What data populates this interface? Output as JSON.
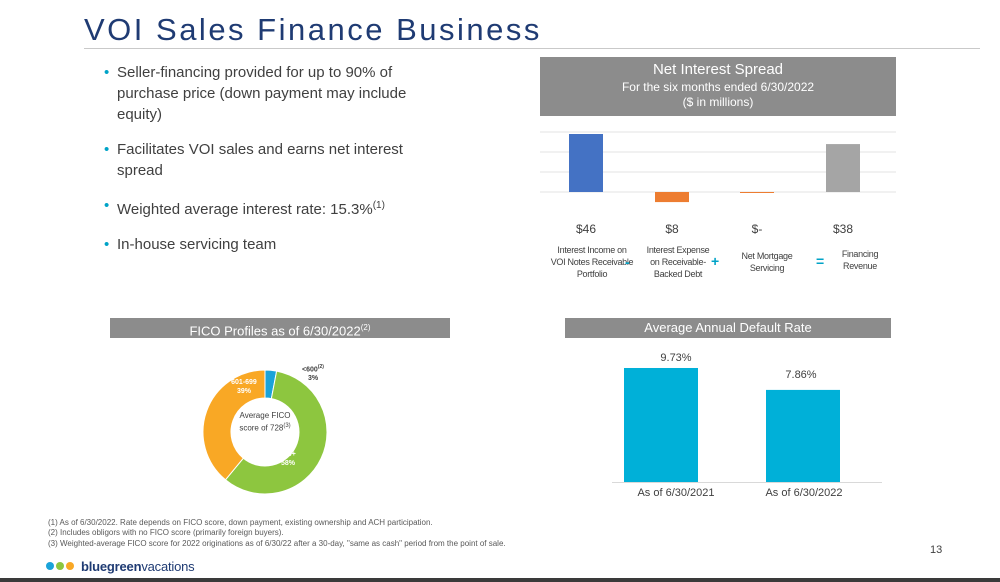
{
  "slide": {
    "title": "VOI Sales Finance Business",
    "page_number": "13"
  },
  "bullets": [
    "Seller-financing provided for up to 90% of purchase price (down payment may include equity)",
    "Facilitates VOI sales and earns net interest spread",
    "Weighted average interest rate: 15.3%",
    "In-house servicing team"
  ],
  "bullet_superscripts": {
    "rate": "(1)"
  },
  "net_interest_spread": {
    "title": "Net Interest Spread",
    "subtitle": "For the six  months ended 6/30/2022",
    "units": "($ in millions)",
    "operators": [
      "-",
      "+",
      "="
    ],
    "labels": [
      "Interest Income on VOI Notes Receivable Portfolio",
      "Interest Expense on Receivable-Backed Debt",
      "Net Mortgage Servicing",
      "Financing Revenue"
    ],
    "value_labels": [
      "$46",
      "$8",
      "$-",
      "$38"
    ]
  },
  "fico": {
    "title": "FICO Profiles as of 6/30/2022",
    "title_sup": "(2)",
    "center_label": "Average FICO score of 728",
    "center_sup": "(3)",
    "segments": [
      {
        "label": "<600",
        "sup": "(2)",
        "pct": "3%",
        "color": "#1aa3d9"
      },
      {
        "label": "700+",
        "pct": "58%",
        "color": "#8dc63f"
      },
      {
        "label": "601-699",
        "pct": "39%",
        "color": "#f9a825"
      }
    ]
  },
  "default_rate": {
    "title": "Average Annual Default Rate",
    "bar_color": "#00b0d8"
  },
  "chart_data": [
    {
      "type": "bar",
      "title": "Net Interest Spread",
      "subtitle": "For the six  months ended 6/30/2022",
      "ylabel": "($ in millions)",
      "categories": [
        "Interest Income on VOI Notes Receivable Portfolio",
        "Interest Expense on Receivable-Backed Debt",
        "Net Mortgage Servicing",
        "Financing Revenue"
      ],
      "values": [
        46,
        -8,
        0,
        38
      ],
      "colors": [
        "#4472c4",
        "#ed7d31",
        "#ed7d31",
        "#a5a5a5"
      ],
      "grid": true
    },
    {
      "type": "pie",
      "title": "FICO Profiles as of 6/30/2022",
      "categories": [
        "<600",
        "700+",
        "601-699"
      ],
      "values": [
        3,
        58,
        39
      ],
      "colors": [
        "#1aa3d9",
        "#8dc63f",
        "#f9a825"
      ]
    },
    {
      "type": "bar",
      "title": "Average Annual Default Rate",
      "categories": [
        "As of 6/30/2021",
        "As of 6/30/2022"
      ],
      "values": [
        9.73,
        7.86
      ],
      "value_labels": [
        "9.73%",
        "7.86%"
      ],
      "ylim": [
        0,
        10.5
      ]
    }
  ],
  "footnotes": [
    "(1)   As of 6/30/2022.  Rate depends on FICO score, down payment, existing ownership and ACH participation.",
    "(2)   Includes obligors with no FICO score (primarily foreign buyers).",
    "(3)   Weighted-average FICO score for 2022 originations as of 6/30/22 after a 30-day, \"same as cash\" period from the point of  sale."
  ],
  "logo": {
    "brand": "bluegreen",
    "suffix": "vacations",
    "dot_colors": [
      "#1aa3d9",
      "#8dc63f",
      "#f9a825"
    ]
  }
}
